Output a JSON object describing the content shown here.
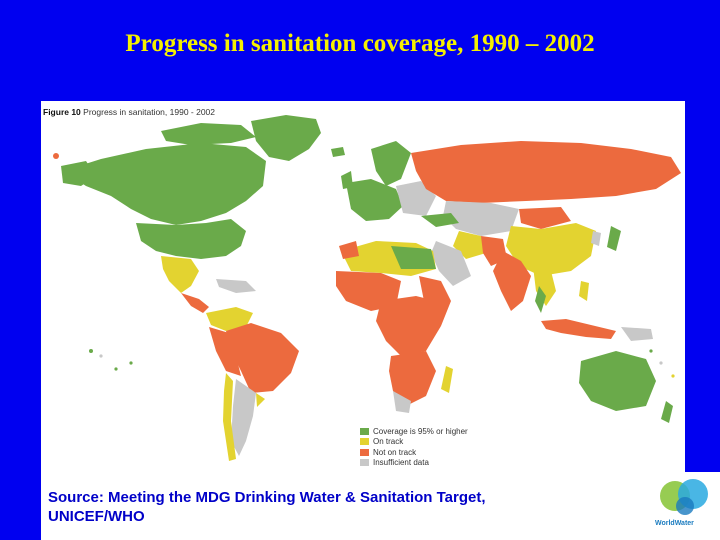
{
  "slide": {
    "title": "Progress in sanitation coverage, 1990 – 2002"
  },
  "figure": {
    "label": "Figure 10",
    "caption": "Progress in sanitation, 1990 - 2002"
  },
  "legend": [
    {
      "label": "Coverage is 95% or higher",
      "color": "#6aaa4a"
    },
    {
      "label": "On track",
      "color": "#e3d330"
    },
    {
      "label": "Not on track",
      "color": "#ec6a3e"
    },
    {
      "label": "Insufficient data",
      "color": "#c8c8c8"
    }
  ],
  "source": {
    "line1": "Source: Meeting the MDG Drinking Water & Sanitation Target,",
    "line2": "UNICEF/WHO"
  },
  "logo": {
    "text": "WorldWater"
  },
  "colors": {
    "background": "#0000f0",
    "title": "#f5f000",
    "source_text": "#0000c8"
  }
}
